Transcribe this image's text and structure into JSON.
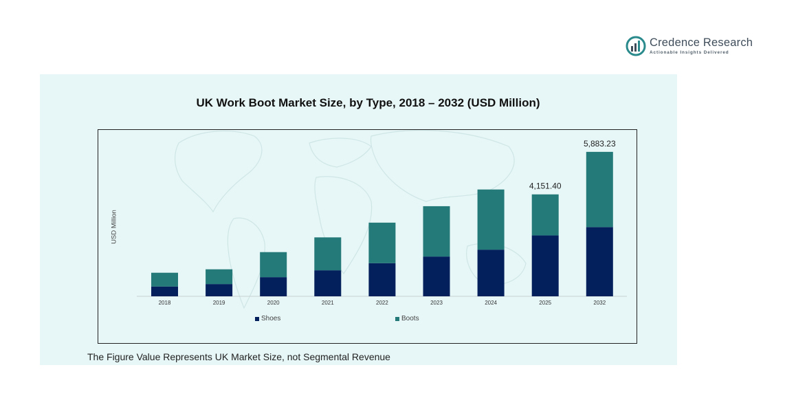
{
  "logo": {
    "name": "Credence Research",
    "tagline": "Actionable Insights Delivered"
  },
  "footnote": "The Figure Value Represents UK Market Size, not Segmental Revenue",
  "colors": {
    "shoes": "#03205c",
    "boots": "#237a78",
    "panel": "#e7f6f6",
    "map": "#d2e9ea",
    "logo_accent": "#2a8a8c"
  },
  "chart_data": {
    "type": "bar",
    "stacked": true,
    "title": "UK Work Boot Market Size, by Type, 2018 – 2032 (USD Million)",
    "xlabel": "",
    "ylabel": "USD Million",
    "categories": [
      "2018",
      "2019",
      "2020",
      "2021",
      "2022",
      "2023",
      "2024",
      "2025",
      "2032"
    ],
    "series": [
      {
        "name": "Shoes",
        "values": [
          400,
          500,
          780,
          1060,
          1350,
          1620,
          1900,
          2480,
          2820
        ]
      },
      {
        "name": "Boots",
        "values": [
          560,
          600,
          1020,
          1340,
          1650,
          2050,
          2450,
          1671.4,
          3063.23
        ]
      }
    ],
    "data_labels": [
      {
        "category": "2025",
        "text": "4,151.40"
      },
      {
        "category": "2032",
        "text": "5,883.23"
      }
    ],
    "ylim": [
      0,
      7000
    ],
    "grid": false,
    "legend_position": "bottom"
  }
}
